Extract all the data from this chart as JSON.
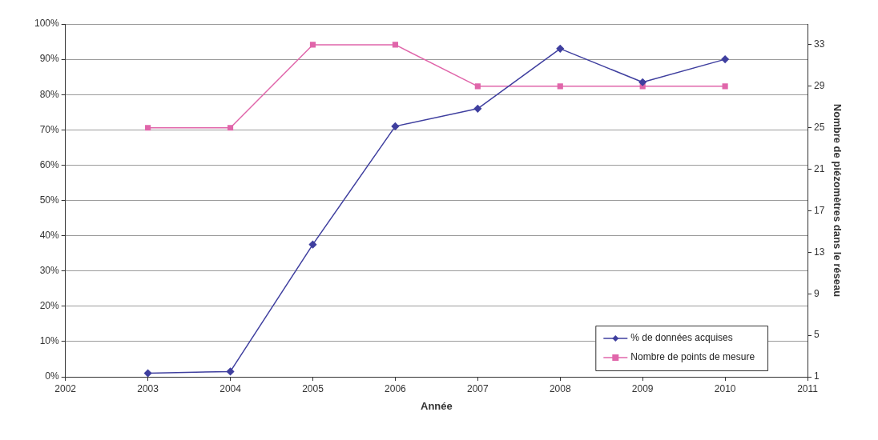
{
  "chart_data": {
    "type": "line",
    "xlabel": "Année",
    "y2label": "Nombre de piézomètres dans le réseau",
    "x": [
      2003,
      2004,
      2005,
      2006,
      2007,
      2008,
      2009,
      2010
    ],
    "xlim": [
      2002,
      2011
    ],
    "xticks": [
      2002,
      2003,
      2004,
      2005,
      2006,
      2007,
      2008,
      2009,
      2010,
      2011
    ],
    "ylim": [
      0,
      100
    ],
    "yticks": [
      {
        "value": 0,
        "label": "0%"
      },
      {
        "value": 10,
        "label": "10%"
      },
      {
        "value": 20,
        "label": "20%"
      },
      {
        "value": 30,
        "label": "30%"
      },
      {
        "value": 40,
        "label": "40%"
      },
      {
        "value": 50,
        "label": "50%"
      },
      {
        "value": 60,
        "label": "60%"
      },
      {
        "value": 70,
        "label": "70%"
      },
      {
        "value": 80,
        "label": "80%"
      },
      {
        "value": 90,
        "label": "90%"
      },
      {
        "value": 100,
        "label": "100%"
      }
    ],
    "y2lim": [
      1,
      35
    ],
    "y2ticks": [
      1,
      5,
      9,
      13,
      17,
      21,
      25,
      29,
      33
    ],
    "series": [
      {
        "name": "% de données acquises",
        "color": "#3f3f9f",
        "marker": "diamond",
        "values": [
          1,
          1.5,
          37.5,
          71,
          76,
          93,
          83.5,
          90
        ]
      },
      {
        "name": "Nombre de points de mesure",
        "color": "#e066aa",
        "marker": "square",
        "axis": "y2",
        "values": [
          25,
          25,
          33,
          33,
          29,
          29,
          29,
          29
        ]
      }
    ],
    "grid": "y",
    "legend": "bottom right",
    "line_style": "solid"
  }
}
